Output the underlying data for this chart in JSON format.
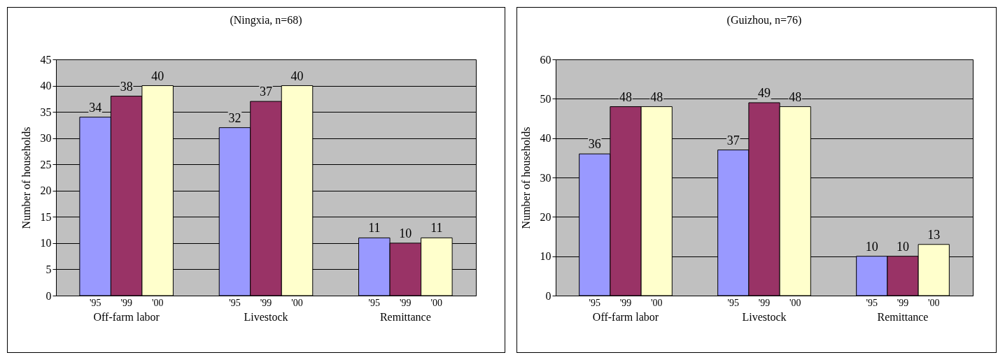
{
  "chart_data": [
    {
      "type": "bar",
      "title": "(Ningxia, n=68)",
      "ylabel": "Number of households",
      "categories": [
        "Off-farm labor",
        "Livestock",
        "Remittance"
      ],
      "series": [
        {
          "name": "'95",
          "color": "#9999ff",
          "values": [
            34,
            32,
            11
          ]
        },
        {
          "name": "'99",
          "color": "#993366",
          "values": [
            38,
            37,
            10
          ]
        },
        {
          "name": "'00",
          "color": "#ffffcc",
          "values": [
            40,
            40,
            11
          ]
        }
      ],
      "ylim": [
        0,
        45
      ],
      "yticks": [
        0,
        5,
        10,
        15,
        20,
        25,
        30,
        35,
        40,
        45
      ],
      "grid": "y",
      "legend": false,
      "data_labels": true
    },
    {
      "type": "bar",
      "title": "(Guizhou, n=76)",
      "ylabel": "Number of households",
      "categories": [
        "Off-farm labor",
        "Livestock",
        "Remittance"
      ],
      "series": [
        {
          "name": "'95",
          "color": "#9999ff",
          "values": [
            36,
            37,
            10
          ]
        },
        {
          "name": "'99",
          "color": "#993366",
          "values": [
            48,
            49,
            10
          ]
        },
        {
          "name": "'00",
          "color": "#ffffcc",
          "values": [
            48,
            48,
            13
          ]
        }
      ],
      "ylim": [
        0,
        60
      ],
      "yticks": [
        0,
        10,
        20,
        30,
        40,
        50,
        60
      ],
      "grid": "y",
      "legend": false,
      "data_labels": true
    }
  ]
}
